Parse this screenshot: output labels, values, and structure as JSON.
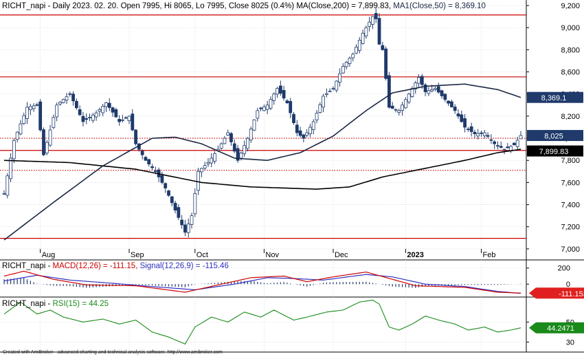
{
  "window": {
    "footer": "Created with AmiBroker - advanced charting and technical analysis software. http://www.amibroker.com"
  },
  "colors": {
    "up_candle": "#ffffff",
    "down_candle": "#1f3a6b",
    "candle_outline": "#1f3a6b",
    "ma200": "#000000",
    "ma50": "#1a2744",
    "level_lines": "#cc0000",
    "macd_line": "#cc0000",
    "signal_line": "#3030c0",
    "histogram": "#1f3a6b",
    "rsi_line": "#1a8a1a",
    "badge_ma50_bg": "#1f3a6b",
    "badge_price_bg": "#1f3a6b",
    "badge_ma200_bg": "#000000",
    "badge_macd_bg": "#e02020",
    "badge_rsi_bg": "#1a8a1a"
  },
  "chart_data": [
    {
      "type": "candlestick",
      "title": {
        "symbol": "RICHT_napi",
        "description": "Daily 2023. 02. 20. Open 7995, Hi 8065, Lo 7995, Close 8025 (0.4%)",
        "ma200_label": "MA(Close,200) = 7,899.83,",
        "ma50_label": "MA1(Close,50) = 8,369.10"
      },
      "ylim": [
        6900,
        9250
      ],
      "y_ticks": [
        7000,
        7200,
        7400,
        7600,
        7800,
        8000,
        8200,
        8400,
        8600,
        8800,
        9000,
        9200
      ],
      "y_tick_labels": [
        "7,000",
        "7,200",
        "7,400",
        "7,600",
        "7,800",
        "8,000",
        "8,200",
        "8,400",
        "8,600",
        "8,800",
        "9,000",
        "9,200"
      ],
      "x_ticks": [
        "Aug",
        "Sep",
        "Oct",
        "Nov",
        "Dec",
        "2023",
        "Feb"
      ],
      "horizontal_lines": [
        {
          "value": 9115,
          "style": "solid"
        },
        {
          "value": 8555,
          "style": "solid"
        },
        {
          "value": 8000,
          "style": "dotted"
        },
        {
          "value": 7890,
          "style": "solid"
        },
        {
          "value": 7710,
          "style": "dotted"
        },
        {
          "value": 7095,
          "style": "solid"
        }
      ],
      "badges": {
        "ma50": "8,369.1",
        "price": "8,025",
        "ma200": "7,899.83"
      },
      "grid": true,
      "bar_count": 158,
      "close_anchors": [
        [
          0,
          7500
        ],
        [
          3,
          7980
        ],
        [
          7,
          8280
        ],
        [
          10,
          8300
        ],
        [
          12,
          7850
        ],
        [
          16,
          8300
        ],
        [
          20,
          8400
        ],
        [
          24,
          8150
        ],
        [
          28,
          8230
        ],
        [
          31,
          8320
        ],
        [
          35,
          8150
        ],
        [
          38,
          8200
        ],
        [
          40,
          7950
        ],
        [
          43,
          7800
        ],
        [
          46,
          7700
        ],
        [
          49,
          7550
        ],
        [
          52,
          7350
        ],
        [
          55,
          7150
        ],
        [
          57,
          7300
        ],
        [
          59,
          7700
        ],
        [
          62,
          7780
        ],
        [
          65,
          7900
        ],
        [
          68,
          8050
        ],
        [
          71,
          7800
        ],
        [
          74,
          8000
        ],
        [
          77,
          8250
        ],
        [
          80,
          8300
        ],
        [
          83,
          8450
        ],
        [
          86,
          8320
        ],
        [
          89,
          8050
        ],
        [
          91,
          8000
        ],
        [
          94,
          8150
        ],
        [
          97,
          8380
        ],
        [
          100,
          8450
        ],
        [
          103,
          8650
        ],
        [
          106,
          8760
        ],
        [
          109,
          8950
        ],
        [
          112,
          9100
        ],
        [
          113,
          9080
        ],
        [
          114,
          8850
        ],
        [
          115,
          8800
        ],
        [
          117,
          8280
        ],
        [
          120,
          8250
        ],
        [
          123,
          8400
        ],
        [
          126,
          8550
        ],
        [
          128,
          8420
        ],
        [
          131,
          8450
        ],
        [
          134,
          8350
        ],
        [
          137,
          8250
        ],
        [
          140,
          8100
        ],
        [
          143,
          8040
        ],
        [
          146,
          8050
        ],
        [
          149,
          7950
        ],
        [
          152,
          7900
        ],
        [
          155,
          7940
        ],
        [
          157,
          8025
        ]
      ],
      "ma200_anchors": [
        [
          0,
          7800
        ],
        [
          20,
          7780
        ],
        [
          40,
          7720
        ],
        [
          60,
          7600
        ],
        [
          75,
          7560
        ],
        [
          95,
          7540
        ],
        [
          105,
          7560
        ],
        [
          115,
          7650
        ],
        [
          125,
          7710
        ],
        [
          140,
          7800
        ],
        [
          150,
          7870
        ],
        [
          157,
          7900
        ]
      ],
      "ma50_anchors": [
        [
          0,
          7080
        ],
        [
          15,
          7420
        ],
        [
          30,
          7750
        ],
        [
          45,
          8000
        ],
        [
          52,
          8010
        ],
        [
          60,
          7950
        ],
        [
          70,
          7820
        ],
        [
          80,
          7800
        ],
        [
          90,
          7870
        ],
        [
          100,
          8020
        ],
        [
          110,
          8250
        ],
        [
          118,
          8410
        ],
        [
          128,
          8470
        ],
        [
          140,
          8490
        ],
        [
          150,
          8440
        ],
        [
          157,
          8369
        ]
      ]
    },
    {
      "type": "macd",
      "title": {
        "symbol": "RICHT_napi",
        "macd_label": "MACD(12,26) = -111.15,",
        "signal_label": "Signal(12,26,9) = -115.46"
      },
      "ylim": [
        -160,
        300
      ],
      "y_ticks": [
        0,
        200
      ],
      "y_tick_labels": [
        "0",
        "200"
      ],
      "badge": "-111.153",
      "macd_anchors": [
        [
          0,
          100
        ],
        [
          6,
          160
        ],
        [
          15,
          60
        ],
        [
          25,
          -10
        ],
        [
          40,
          -20
        ],
        [
          55,
          -100
        ],
        [
          65,
          -10
        ],
        [
          75,
          80
        ],
        [
          85,
          100
        ],
        [
          92,
          30
        ],
        [
          100,
          90
        ],
        [
          110,
          150
        ],
        [
          118,
          60
        ],
        [
          125,
          -20
        ],
        [
          140,
          -40
        ],
        [
          150,
          -100
        ],
        [
          157,
          -111
        ]
      ],
      "signal_anchors": [
        [
          0,
          40
        ],
        [
          10,
          110
        ],
        [
          20,
          50
        ],
        [
          30,
          20
        ],
        [
          45,
          -30
        ],
        [
          58,
          -70
        ],
        [
          70,
          0
        ],
        [
          80,
          80
        ],
        [
          88,
          70
        ],
        [
          97,
          50
        ],
        [
          110,
          120
        ],
        [
          118,
          90
        ],
        [
          128,
          0
        ],
        [
          140,
          -30
        ],
        [
          150,
          -90
        ],
        [
          157,
          -115
        ]
      ]
    },
    {
      "type": "rsi",
      "title": {
        "symbol": "RICHT_napi",
        "rsi_label": "RSI(15) = 44.25"
      },
      "ylim": [
        20,
        75
      ],
      "y_ticks": [
        30,
        50
      ],
      "y_tick_labels": [
        "30",
        "50"
      ],
      "badge": "44.2471",
      "rsi_anchors": [
        [
          0,
          58
        ],
        [
          5,
          70
        ],
        [
          10,
          58
        ],
        [
          14,
          62
        ],
        [
          18,
          55
        ],
        [
          24,
          50
        ],
        [
          30,
          53
        ],
        [
          35,
          48
        ],
        [
          40,
          52
        ],
        [
          45,
          40
        ],
        [
          50,
          35
        ],
        [
          55,
          28
        ],
        [
          58,
          45
        ],
        [
          63,
          55
        ],
        [
          68,
          50
        ],
        [
          73,
          60
        ],
        [
          78,
          55
        ],
        [
          82,
          62
        ],
        [
          88,
          52
        ],
        [
          92,
          55
        ],
        [
          98,
          60
        ],
        [
          103,
          62
        ],
        [
          108,
          70
        ],
        [
          112,
          72
        ],
        [
          114,
          68
        ],
        [
          117,
          45
        ],
        [
          120,
          42
        ],
        [
          124,
          48
        ],
        [
          128,
          56
        ],
        [
          132,
          52
        ],
        [
          137,
          48
        ],
        [
          141,
          42
        ],
        [
          146,
          45
        ],
        [
          150,
          40
        ],
        [
          154,
          42
        ],
        [
          157,
          44.25
        ]
      ]
    }
  ]
}
